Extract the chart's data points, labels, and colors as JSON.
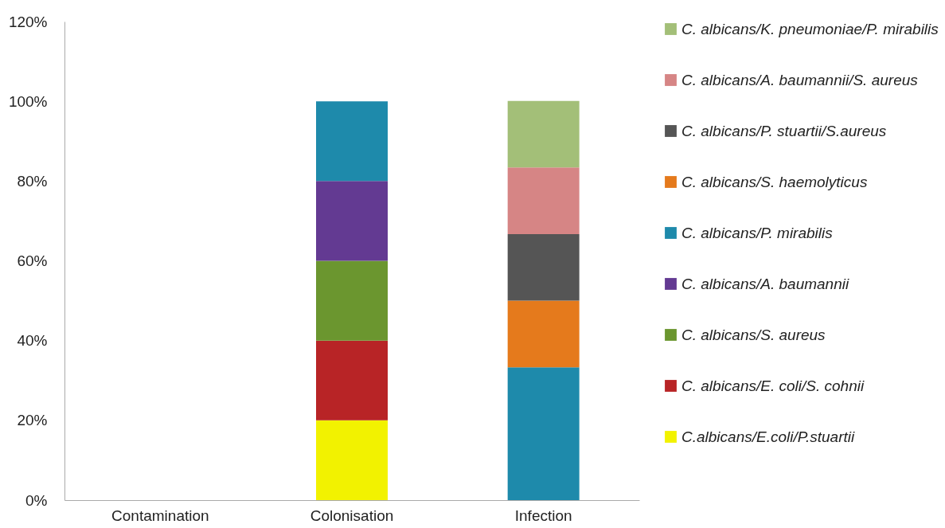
{
  "chart_data": {
    "type": "bar",
    "stacked": true,
    "categories": [
      "Contamination",
      "Colonisation",
      "Infection"
    ],
    "series": [
      {
        "name": "C.albicans/E.coli/P.stuartii",
        "color": "#f2f200",
        "values": [
          0,
          20,
          0
        ]
      },
      {
        "name": "C. albicans/E. coli/S. cohnii",
        "color": "#b82426",
        "values": [
          0,
          20,
          0
        ]
      },
      {
        "name": "C. albicans/S. aureus",
        "color": "#6b962f",
        "values": [
          0,
          20,
          0
        ]
      },
      {
        "name": "C. albicans/A. baumannii",
        "color": "#633a92",
        "values": [
          0,
          20,
          0
        ]
      },
      {
        "name": "C. albicans/P. mirabilis",
        "color": "#1e8aab",
        "values": [
          0,
          20,
          33.3
        ]
      },
      {
        "name": "C. albicans/S. haemolyticus",
        "color": "#e57a1c",
        "values": [
          0,
          0,
          16.7
        ]
      },
      {
        "name": "C. albicans/P. stuartii/S.aureus",
        "color": "#555555",
        "values": [
          0,
          0,
          16.7
        ]
      },
      {
        "name": "C. albicans/A. baumannii/S. aureus",
        "color": "#d68585",
        "values": [
          0,
          0,
          16.7
        ]
      },
      {
        "name": "C. albicans/K. pneumoniae/P. mirabilis",
        "color": "#a3bf78",
        "values": [
          0,
          0,
          16.7
        ]
      }
    ],
    "ylim": [
      0,
      120
    ],
    "yticks": [
      {
        "value": 0,
        "label": "0%"
      },
      {
        "value": 20,
        "label": "20%"
      },
      {
        "value": 40,
        "label": "40%"
      },
      {
        "value": 60,
        "label": "60%"
      },
      {
        "value": 80,
        "label": "80%"
      },
      {
        "value": 100,
        "label": "100%"
      },
      {
        "value": 120,
        "label": "120%"
      }
    ],
    "grid": false,
    "legend": "right"
  }
}
